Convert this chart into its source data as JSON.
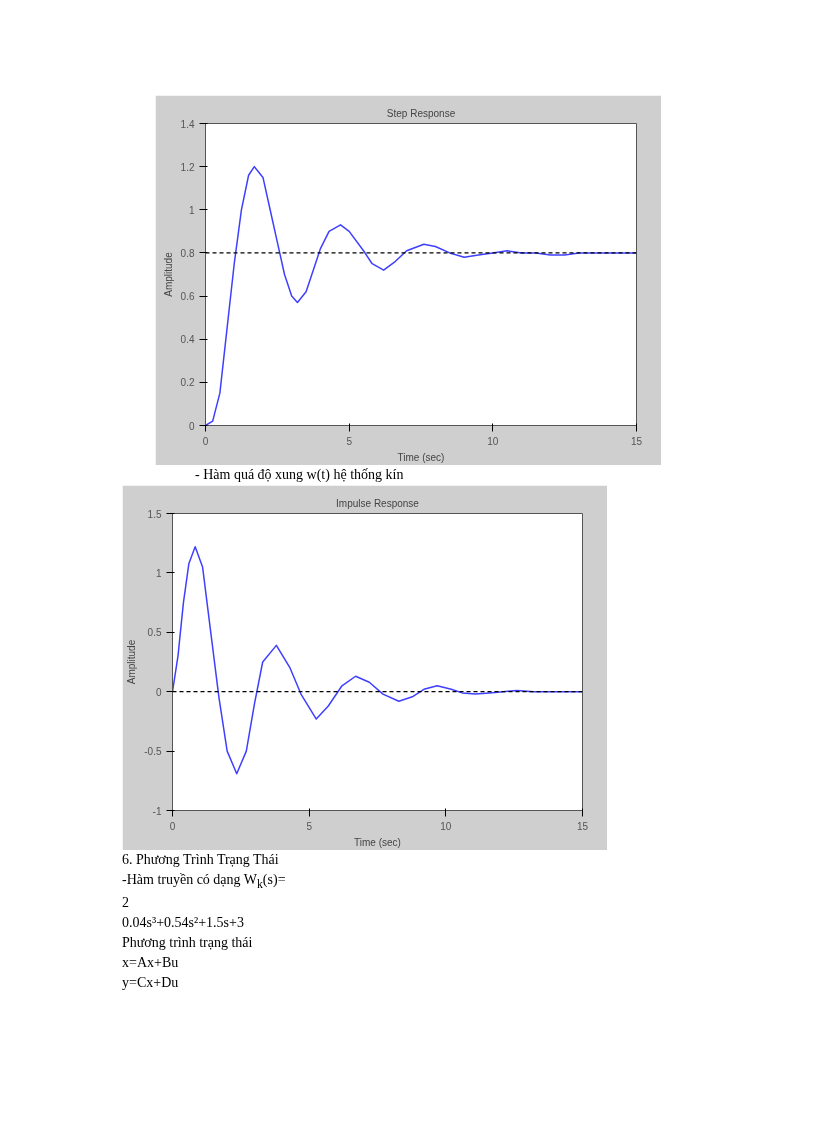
{
  "chart_data": [
    {
      "type": "line",
      "title": "Step Response",
      "xlabel": "Time (sec)",
      "ylabel": "Amplitude",
      "xlim": [
        0,
        15
      ],
      "ylim": [
        0,
        1.4
      ],
      "xticks": [
        0,
        5,
        10,
        15
      ],
      "yticks": [
        0,
        0.2,
        0.4,
        0.6,
        0.8,
        1,
        1.2,
        1.4
      ],
      "grid": false,
      "line_style": "solid",
      "series": [
        {
          "color": "#3f3fff",
          "x": [
            0,
            0.25,
            0.5,
            0.75,
            1,
            1.25,
            1.5,
            1.7,
            2,
            2.25,
            2.5,
            2.75,
            3,
            3.2,
            3.5,
            3.75,
            4,
            4.3,
            4.7,
            5,
            5.5,
            5.8,
            6.2,
            6.6,
            7,
            7.6,
            8,
            8.5,
            9,
            9.5,
            10,
            10.5,
            11,
            11.5,
            12,
            12.5,
            13,
            13.5,
            14,
            14.5,
            15
          ],
          "values": [
            0,
            0.02,
            0.15,
            0.45,
            0.75,
            1.0,
            1.16,
            1.2,
            1.15,
            1.0,
            0.85,
            0.7,
            0.6,
            0.57,
            0.62,
            0.72,
            0.82,
            0.9,
            0.93,
            0.9,
            0.81,
            0.75,
            0.72,
            0.76,
            0.81,
            0.84,
            0.83,
            0.8,
            0.78,
            0.79,
            0.8,
            0.81,
            0.8,
            0.8,
            0.79,
            0.79,
            0.8,
            0.8,
            0.8,
            0.8,
            0.8
          ]
        }
      ],
      "ref_lines": [
        {
          "axis": "y",
          "value": 0.8,
          "color": "#000000",
          "line_style": "dashed"
        }
      ],
      "annotations": [
        "-    Hàm quá độ xung w(t) hệ thống kín"
      ]
    },
    {
      "type": "line",
      "title": "Impulse Response",
      "xlabel": "Time (sec)",
      "ylabel": "Amplitude",
      "xlim": [
        0,
        15
      ],
      "ylim": [
        -1,
        1.5
      ],
      "xticks": [
        0,
        5,
        10,
        15
      ],
      "yticks": [
        -1,
        -0.5,
        0,
        0.5,
        1,
        1.5
      ],
      "grid": false,
      "line_style": "solid",
      "series": [
        {
          "color": "#3f3fff",
          "x": [
            0,
            0.2,
            0.4,
            0.6,
            0.83,
            1.1,
            1.4,
            1.7,
            2.0,
            2.35,
            2.7,
            3.0,
            3.3,
            3.8,
            4.3,
            4.7,
            5.26,
            5.7,
            6.2,
            6.7,
            7.2,
            7.7,
            8.28,
            8.8,
            9.2,
            9.68,
            10.2,
            10.6,
            11.08,
            11.6,
            12.1,
            12.6,
            13.2,
            13.8,
            14.4,
            15
          ],
          "values": [
            0,
            0.3,
            0.75,
            1.08,
            1.22,
            1.05,
            0.5,
            -0.05,
            -0.5,
            -0.69,
            -0.5,
            -0.1,
            0.25,
            0.39,
            0.2,
            -0.02,
            -0.23,
            -0.12,
            0.05,
            0.13,
            0.08,
            -0.02,
            -0.08,
            -0.04,
            0.02,
            0.05,
            0.02,
            -0.01,
            -0.02,
            -0.01,
            0,
            0.01,
            0,
            0,
            0,
            0
          ]
        }
      ],
      "ref_lines": [
        {
          "axis": "y",
          "value": 0,
          "color": "#000000",
          "line_style": "dashed"
        }
      ],
      "annotations": [
        "6. Phương Trình Trạng Thái",
        "-Hàm truyền có dạng W$_{k}$(s)=",
        "2",
        "0.04s³+0.54s²+1.5s+3",
        "Phương trình trạng thái",
        "x=Ax+Bu",
        "y=Cx+Du"
      ]
    }
  ]
}
